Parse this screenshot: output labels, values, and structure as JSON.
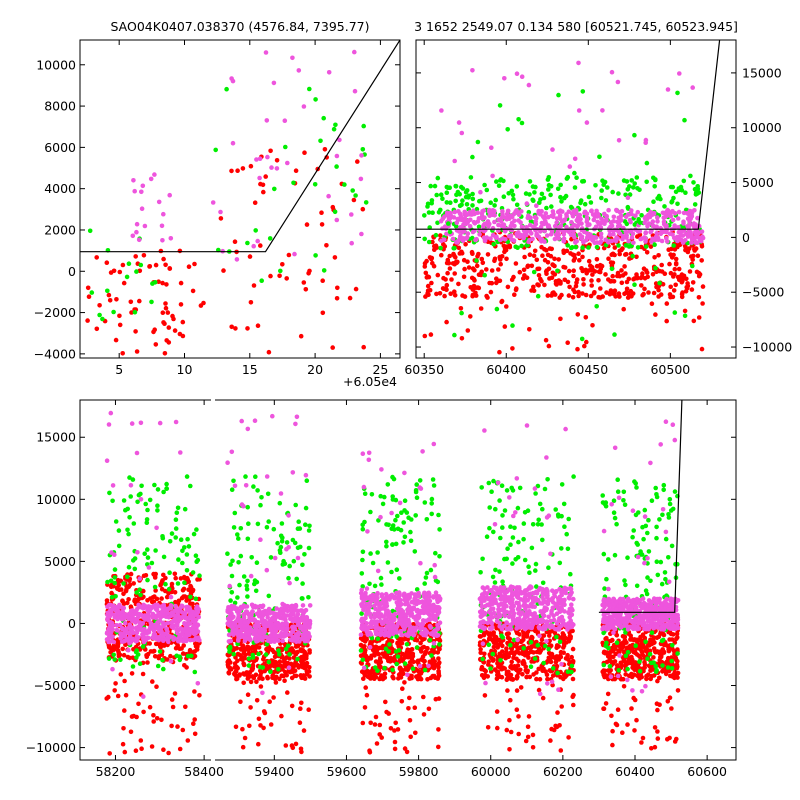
{
  "chart_data": {
    "title_left": "SAO04K0407.038370 (4576.84, 7395.77)",
    "title_right": "3 1652 2549.07 0.134 580 [60521.745, 60523.945]",
    "series_colors": {
      "red": "#ff0000",
      "green": "#00ee00",
      "magenta": "#ee55dd",
      "fit": "#000000"
    },
    "panels": [
      {
        "id": "top-left",
        "type": "scatter",
        "x_offset_label": "+6.05e4",
        "xlim": [
          2,
          26.5
        ],
        "ylim": [
          -4200,
          11200
        ],
        "xticks": [
          5,
          10,
          15,
          20,
          25
        ],
        "yticks": [
          -4000,
          -2000,
          0,
          2000,
          4000,
          6000,
          8000,
          10000
        ],
        "fit_line": [
          [
            2,
            950
          ],
          [
            16.2,
            950
          ],
          [
            26.5,
            11200
          ]
        ],
        "clusters": [
          {
            "color": "red",
            "n": 70,
            "x": [
              2.5,
              11.5
            ],
            "y": [
              -4000,
              1000
            ]
          },
          {
            "color": "red",
            "n": 60,
            "x": [
              12.5,
              24
            ],
            "y": [
              -4000,
              6000
            ]
          },
          {
            "color": "green",
            "n": 16,
            "x": [
              2.5,
              9
            ],
            "y": [
              -2500,
              2000
            ]
          },
          {
            "color": "green",
            "n": 30,
            "x": [
              12,
              24
            ],
            "y": [
              -500,
              9000
            ]
          },
          {
            "color": "magenta",
            "n": 18,
            "x": [
              6,
              9.5
            ],
            "y": [
              1200,
              5000
            ]
          },
          {
            "color": "magenta",
            "n": 36,
            "x": [
              12,
              24
            ],
            "y": [
              500,
              11000
            ]
          }
        ]
      },
      {
        "id": "top-right",
        "type": "scatter",
        "xlim": [
          60345,
          60540
        ],
        "ylim": [
          -11000,
          18000
        ],
        "xticks": [
          60350,
          60400,
          60450,
          60500
        ],
        "yticks": [
          -10000,
          -5000,
          0,
          5000,
          10000,
          15000
        ],
        "fit_line": [
          [
            60345,
            750
          ],
          [
            60517,
            750
          ],
          [
            60530,
            18000
          ]
        ],
        "clusters": [
          {
            "color": "red",
            "n": 520,
            "x": [
              60350,
              60520
            ],
            "y": [
              -5500,
              500
            ]
          },
          {
            "color": "green",
            "n": 320,
            "x": [
              60350,
              60520
            ],
            "y": [
              -1000,
              5500
            ]
          },
          {
            "color": "magenta",
            "n": 560,
            "x": [
              60360,
              60520
            ],
            "y": [
              -500,
              2500
            ]
          },
          {
            "color": "magenta",
            "n": 30,
            "x": [
              60360,
              60520
            ],
            "y": [
              2500,
              16000
            ]
          },
          {
            "color": "green",
            "n": 40,
            "x": [
              60350,
              60520
            ],
            "y": [
              -10000,
              14000
            ]
          },
          {
            "color": "red",
            "n": 40,
            "x": [
              60350,
              60520
            ],
            "y": [
              -10500,
              -5000
            ]
          }
        ]
      },
      {
        "id": "bottom",
        "type": "scatter",
        "xlim": [
          58120,
          60680
        ],
        "ylim": [
          -11000,
          18000
        ],
        "xticks": [
          58200,
          58400,
          59400,
          59600,
          59800,
          60000,
          60200,
          60400,
          60600
        ],
        "yticks": [
          -10000,
          -5000,
          0,
          5000,
          10000,
          15000
        ],
        "axis_break_x": 58420,
        "fit_line": [
          [
            60300,
            900
          ],
          [
            60510,
            900
          ],
          [
            60530,
            18000
          ]
        ],
        "seasons": [
          {
            "x": [
              58180,
              58390
            ],
            "red": [
              -3000,
              4000
            ],
            "mag": [
              -1500,
              1500
            ]
          },
          {
            "x": [
              59270,
              59500
            ],
            "red": [
              -4500,
              0
            ],
            "mag": [
              -1500,
              1500
            ]
          },
          {
            "x": [
              59640,
              59860
            ],
            "red": [
              -4500,
              0
            ],
            "mag": [
              -1000,
              2500
            ]
          },
          {
            "x": [
              59970,
              60230
            ],
            "red": [
              -4500,
              0
            ],
            "mag": [
              -500,
              3000
            ]
          },
          {
            "x": [
              60310,
              60520
            ],
            "red": [
              -4500,
              0
            ],
            "mag": [
              -500,
              2000
            ]
          }
        ]
      }
    ]
  }
}
